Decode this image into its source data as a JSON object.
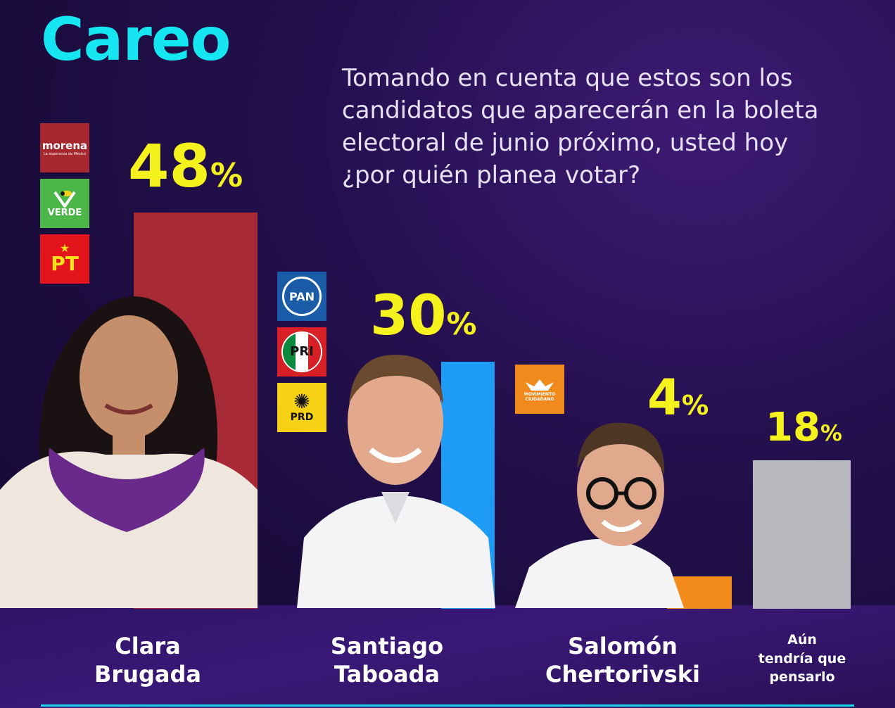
{
  "title": "Careo",
  "question": "Tomando en cuenta que estos son los candidatos que aparecerán en la boleta electoral de junio próximo, usted hoy ¿por quién planea votar?",
  "logos": {
    "morena": "morena",
    "morena_sub": "La esperanza de México",
    "verde": "VERDE",
    "pt": "PT",
    "pan": "PAN",
    "pri": "PRI",
    "prd": "PRD",
    "mc": "MOVIMIENTO CIUDADANO"
  },
  "chart_data": {
    "type": "bar",
    "categories": [
      "Clara Brugada",
      "Santiago Taboada",
      "Salomón Chertorivski",
      "Aún tendría que pensarlo"
    ],
    "values": [
      48,
      30,
      4,
      18
    ],
    "labels": [
      "48",
      "30",
      "4",
      "18"
    ],
    "unit": "%",
    "colors": [
      "#a72a36",
      "#1e9cf5",
      "#f28b1c",
      "#b7b9be"
    ],
    "ylim": [
      0,
      48
    ]
  },
  "names": {
    "c1_line1": "Clara",
    "c1_line2": "Brugada",
    "c2_line1": "Santiago",
    "c2_line2": "Taboada",
    "c3_line1": "Salomón",
    "c3_line2": "Chertorivski",
    "c4_line1": "Aún",
    "c4_line2": "tendría que",
    "c4_line3": "pensarlo"
  }
}
